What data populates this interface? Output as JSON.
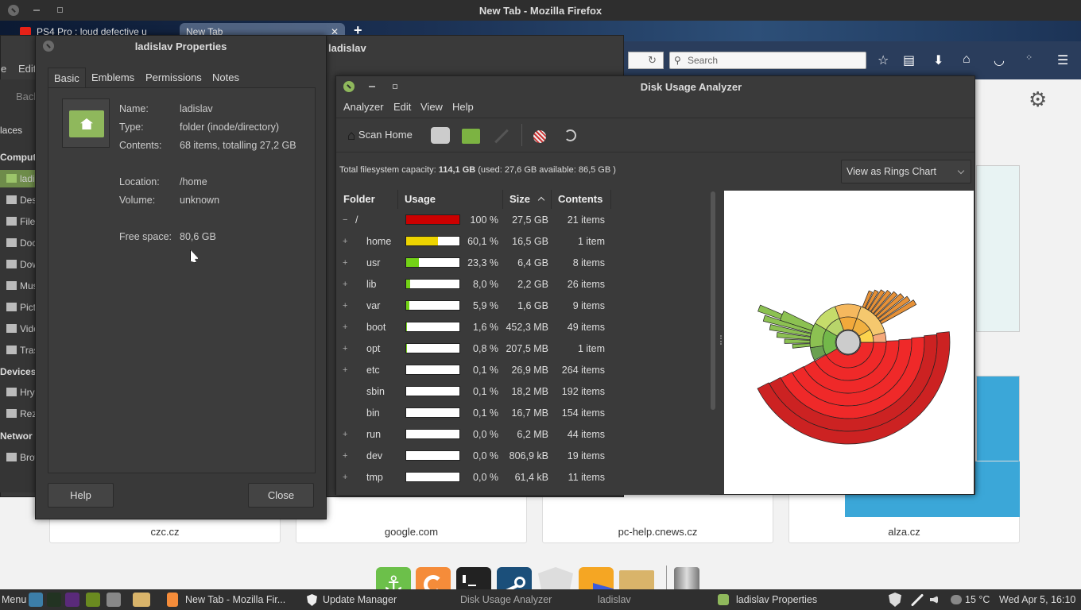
{
  "firefox": {
    "window_title": "New Tab - Mozilla Firefox",
    "tabs": [
      {
        "label": "PS4 Pro : loud defective u"
      },
      {
        "label": "New Tab"
      }
    ],
    "search_placeholder": "Search",
    "tiles": [
      "czc.cz",
      "google.com",
      "pc-help.cnews.cz",
      "alza.cz"
    ]
  },
  "nemo": {
    "title": "ladislav",
    "menu": [
      "e",
      "Edit"
    ],
    "back": "Back",
    "places": "laces",
    "sections": {
      "computer": "Comput",
      "devices": "Devices",
      "network": "Networ"
    },
    "items": [
      {
        "label": "ladislav",
        "icon": "home-folder-icon"
      },
      {
        "label": "Desktop",
        "icon": "desktop-icon"
      },
      {
        "label": "File System",
        "icon": "drive-icon"
      },
      {
        "label": "Documents",
        "icon": "documents-folder-icon"
      },
      {
        "label": "Downloads",
        "icon": "downloads-folder-icon"
      },
      {
        "label": "Music",
        "icon": "music-folder-icon"
      },
      {
        "label": "Pictures",
        "icon": "pictures-folder-icon"
      },
      {
        "label": "Videos",
        "icon": "videos-folder-icon"
      },
      {
        "label": "Trash",
        "icon": "trash-icon"
      }
    ],
    "devices": [
      {
        "label": "Hry"
      },
      {
        "label": "Rez"
      }
    ],
    "network": [
      {
        "label": "Browse Network"
      }
    ]
  },
  "properties": {
    "title": "ladislav Properties",
    "tabs": [
      "Basic",
      "Emblems",
      "Permissions",
      "Notes"
    ],
    "active_tab": "Basic",
    "fields": [
      {
        "label": "Name:",
        "value": "ladislav"
      },
      {
        "label": "Type:",
        "value": "folder (inode/directory)"
      },
      {
        "label": "Contents:",
        "value": "68 items, totalling 27,2 GB"
      },
      {
        "label": "Location:",
        "value": "/home"
      },
      {
        "label": "Volume:",
        "value": "unknown"
      },
      {
        "label": "Free space:",
        "value": "80,6 GB"
      }
    ],
    "help": "Help",
    "close": "Close"
  },
  "dua": {
    "title": "Disk Usage Analyzer",
    "menu": [
      "Analyzer",
      "Edit",
      "View",
      "Help"
    ],
    "scan_home": "Scan Home",
    "capacity_prefix": "Total filesystem capacity: ",
    "capacity_total": "114,1 GB",
    "capacity_rest": " (used: 27,6 GB available: 86,5 GB )",
    "view_select": "View as Rings Chart",
    "columns": [
      "Folder",
      "Usage",
      "Size",
      "Contents"
    ],
    "rows": [
      {
        "expander": "−",
        "name": "/",
        "usage": 100,
        "pct": "100 %",
        "size": "27,5 GB",
        "contents": "21 items",
        "color": "#cc0000"
      },
      {
        "expander": "+",
        "name": "home",
        "usage": 60.1,
        "pct": "60,1 %",
        "size": "16,5 GB",
        "contents": "1 item",
        "color": "#edd400"
      },
      {
        "expander": "+",
        "name": "usr",
        "usage": 23.3,
        "pct": "23,3 %",
        "size": "6,4 GB",
        "contents": "8 items",
        "color": "#73d216"
      },
      {
        "expander": "+",
        "name": "lib",
        "usage": 8.0,
        "pct": "8,0 %",
        "size": "2,2 GB",
        "contents": "26 items",
        "color": "#73d216"
      },
      {
        "expander": "+",
        "name": "var",
        "usage": 5.9,
        "pct": "5,9 %",
        "size": "1,6 GB",
        "contents": "9 items",
        "color": "#73d216"
      },
      {
        "expander": "+",
        "name": "boot",
        "usage": 1.6,
        "pct": "1,6 %",
        "size": "452,3 MB",
        "contents": "49 items",
        "color": "#73d216"
      },
      {
        "expander": "+",
        "name": "opt",
        "usage": 0.8,
        "pct": "0,8 %",
        "size": "207,5 MB",
        "contents": "1 item",
        "color": "#73d216"
      },
      {
        "expander": "+",
        "name": "etc",
        "usage": 0.1,
        "pct": "0,1 %",
        "size": "26,9 MB",
        "contents": "264 items",
        "color": "#73d216"
      },
      {
        "expander": "",
        "name": "sbin",
        "usage": 0.1,
        "pct": "0,1 %",
        "size": "18,2 MB",
        "contents": "192 items",
        "color": "#73d216"
      },
      {
        "expander": "",
        "name": "bin",
        "usage": 0.1,
        "pct": "0,1 %",
        "size": "16,7 MB",
        "contents": "154 items",
        "color": "#73d216"
      },
      {
        "expander": "+",
        "name": "run",
        "usage": 0.0,
        "pct": "0,0 %",
        "size": "6,2 MB",
        "contents": "44 items",
        "color": "#73d216"
      },
      {
        "expander": "+",
        "name": "dev",
        "usage": 0.0,
        "pct": "0,0 %",
        "size": "806,9 kB",
        "contents": "19 items",
        "color": "#73d216"
      },
      {
        "expander": "+",
        "name": "tmp",
        "usage": 0.0,
        "pct": "0,0 %",
        "size": "61,4 kB",
        "contents": "11 items",
        "color": "#73d216"
      }
    ]
  },
  "taskbar": {
    "menu": "Menu",
    "windows": [
      "New Tab - Mozilla Fir...",
      "Update Manager",
      "Disk Usage Analyzer",
      "ladislav",
      "ladislav Properties"
    ],
    "weather": "15 °C",
    "clock": "Wed Apr  5, 16:10"
  }
}
